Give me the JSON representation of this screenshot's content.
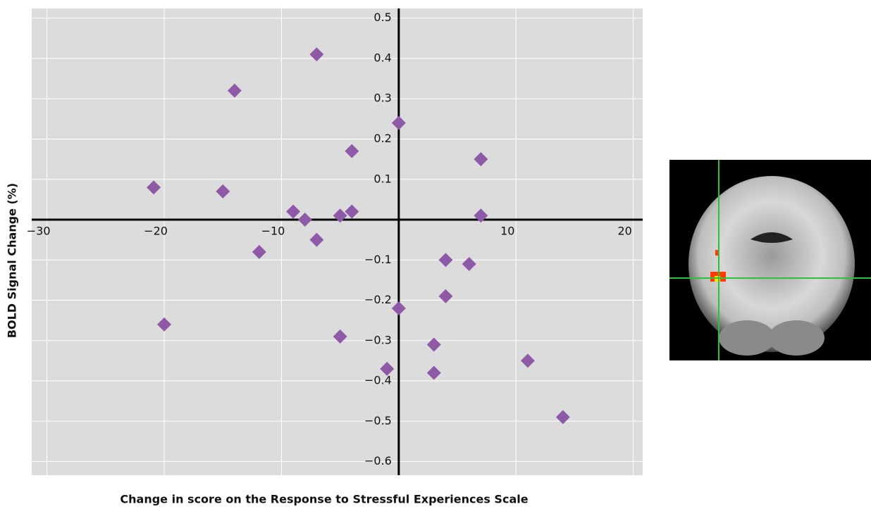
{
  "chart_data": {
    "type": "scatter",
    "x_label": "Change in score on the Response to Stressful Experiences Scale",
    "y_label": "BOLD Signal Change (%)",
    "x": [
      -20.9,
      -20,
      -15,
      -14,
      -11.9,
      -9,
      -8,
      -7,
      -7,
      -5,
      -5,
      -4,
      -4,
      -1,
      0,
      0,
      3,
      3,
      4,
      4,
      6,
      7,
      7,
      11,
      14
    ],
    "y": [
      0.08,
      -0.26,
      0.07,
      0.32,
      -0.08,
      0.02,
      0.0,
      0.41,
      -0.05,
      0.01,
      -0.29,
      0.17,
      0.02,
      -0.37,
      0.24,
      -0.22,
      -0.31,
      -0.38,
      -0.1,
      -0.19,
      -0.11,
      0.15,
      0.01,
      -0.35,
      -0.49
    ],
    "color": "#8e5aa8",
    "xlim": [
      -31.3,
      20.8
    ],
    "ylim": [
      -0.634,
      0.524
    ],
    "xticks": [
      {
        "value": -30,
        "label": "−30"
      },
      {
        "value": -20,
        "label": "−20"
      },
      {
        "value": -10,
        "label": "−10"
      },
      10,
      20
    ],
    "yticks": [
      {
        "value": -0.6,
        "label": "−0.6"
      },
      {
        "value": -0.5,
        "label": "−0.5"
      },
      {
        "value": -0.4,
        "label": "−0.4"
      },
      {
        "value": -0.3,
        "label": "−0.3"
      },
      {
        "value": -0.2,
        "label": "−0.2"
      },
      {
        "value": -0.1,
        "label": "−0.1"
      },
      0.1,
      0.2,
      0.3,
      0.4,
      0.5
    ],
    "grid": true
  }
}
